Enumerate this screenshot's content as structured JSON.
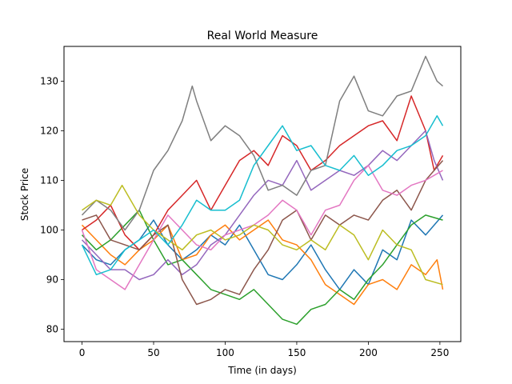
{
  "chart_data": {
    "type": "line",
    "title": "Real World Measure",
    "xlabel": "Time (in days)",
    "ylabel": "Stock Price",
    "xlim": [
      -12.6,
      264.6
    ],
    "ylim": [
      77.5,
      137
    ],
    "xticks": [
      0,
      50,
      100,
      150,
      200,
      250
    ],
    "yticks": [
      80,
      90,
      100,
      110,
      120,
      130
    ],
    "grid": false,
    "legend": "none",
    "series": [
      {
        "color": "#1f77b4",
        "points": [
          [
            0,
            97
          ],
          [
            10,
            94
          ],
          [
            20,
            93
          ],
          [
            30,
            96
          ],
          [
            40,
            98
          ],
          [
            50,
            102
          ],
          [
            60,
            97
          ],
          [
            70,
            94
          ],
          [
            80,
            96
          ],
          [
            90,
            99
          ],
          [
            100,
            97
          ],
          [
            110,
            101
          ],
          [
            120,
            96
          ],
          [
            130,
            91
          ],
          [
            140,
            90
          ],
          [
            150,
            93
          ],
          [
            160,
            97
          ],
          [
            170,
            92
          ],
          [
            180,
            88
          ],
          [
            190,
            92
          ],
          [
            200,
            89
          ],
          [
            210,
            96
          ],
          [
            220,
            94
          ],
          [
            230,
            102
          ],
          [
            240,
            99
          ],
          [
            252,
            103
          ]
        ]
      },
      {
        "color": "#ff7f0e",
        "points": [
          [
            0,
            101
          ],
          [
            10,
            98
          ],
          [
            20,
            95
          ],
          [
            30,
            93
          ],
          [
            40,
            96
          ],
          [
            50,
            98
          ],
          [
            60,
            101
          ],
          [
            70,
            94
          ],
          [
            80,
            95
          ],
          [
            90,
            99
          ],
          [
            100,
            101
          ],
          [
            110,
            98
          ],
          [
            120,
            100
          ],
          [
            130,
            102
          ],
          [
            140,
            98
          ],
          [
            150,
            97
          ],
          [
            160,
            94
          ],
          [
            170,
            89
          ],
          [
            180,
            87
          ],
          [
            190,
            85
          ],
          [
            200,
            89
          ],
          [
            210,
            90
          ],
          [
            220,
            88
          ],
          [
            230,
            93
          ],
          [
            240,
            91
          ],
          [
            248,
            94
          ],
          [
            252,
            88
          ]
        ]
      },
      {
        "color": "#2ca02c",
        "points": [
          [
            0,
            99
          ],
          [
            10,
            96
          ],
          [
            20,
            98
          ],
          [
            30,
            101
          ],
          [
            40,
            104
          ],
          [
            50,
            98
          ],
          [
            60,
            93
          ],
          [
            70,
            94
          ],
          [
            80,
            91
          ],
          [
            90,
            88
          ],
          [
            100,
            87
          ],
          [
            110,
            86
          ],
          [
            120,
            88
          ],
          [
            130,
            85
          ],
          [
            140,
            82
          ],
          [
            150,
            81
          ],
          [
            160,
            84
          ],
          [
            170,
            85
          ],
          [
            180,
            88
          ],
          [
            190,
            86
          ],
          [
            200,
            90
          ],
          [
            210,
            93
          ],
          [
            220,
            97
          ],
          [
            230,
            101
          ],
          [
            240,
            103
          ],
          [
            252,
            102
          ]
        ]
      },
      {
        "color": "#d62728",
        "points": [
          [
            0,
            100
          ],
          [
            10,
            102
          ],
          [
            20,
            105
          ],
          [
            30,
            99
          ],
          [
            40,
            96
          ],
          [
            50,
            99
          ],
          [
            60,
            104
          ],
          [
            70,
            107
          ],
          [
            80,
            110
          ],
          [
            90,
            104
          ],
          [
            100,
            109
          ],
          [
            110,
            114
          ],
          [
            120,
            116
          ],
          [
            130,
            113
          ],
          [
            140,
            119
          ],
          [
            150,
            117
          ],
          [
            160,
            112
          ],
          [
            170,
            114
          ],
          [
            180,
            117
          ],
          [
            190,
            119
          ],
          [
            200,
            121
          ],
          [
            210,
            122
          ],
          [
            220,
            118
          ],
          [
            230,
            127
          ],
          [
            240,
            120
          ],
          [
            246,
            112
          ],
          [
            252,
            115
          ]
        ]
      },
      {
        "color": "#9467bd",
        "points": [
          [
            0,
            98
          ],
          [
            10,
            95
          ],
          [
            20,
            92
          ],
          [
            30,
            92
          ],
          [
            40,
            90
          ],
          [
            50,
            91
          ],
          [
            60,
            94
          ],
          [
            70,
            91
          ],
          [
            80,
            93
          ],
          [
            90,
            97
          ],
          [
            100,
            99
          ],
          [
            110,
            103
          ],
          [
            120,
            107
          ],
          [
            130,
            110
          ],
          [
            140,
            109
          ],
          [
            150,
            114
          ],
          [
            160,
            108
          ],
          [
            170,
            110
          ],
          [
            180,
            112
          ],
          [
            190,
            111
          ],
          [
            200,
            113
          ],
          [
            210,
            116
          ],
          [
            220,
            114
          ],
          [
            230,
            117
          ],
          [
            240,
            120
          ],
          [
            246,
            114
          ],
          [
            252,
            110
          ]
        ]
      },
      {
        "color": "#8c564b",
        "points": [
          [
            0,
            102
          ],
          [
            10,
            103
          ],
          [
            20,
            98
          ],
          [
            30,
            97
          ],
          [
            40,
            96
          ],
          [
            50,
            99
          ],
          [
            60,
            101
          ],
          [
            70,
            90
          ],
          [
            80,
            85
          ],
          [
            90,
            86
          ],
          [
            100,
            88
          ],
          [
            110,
            87
          ],
          [
            120,
            92
          ],
          [
            130,
            96
          ],
          [
            140,
            102
          ],
          [
            150,
            104
          ],
          [
            160,
            98
          ],
          [
            170,
            103
          ],
          [
            180,
            101
          ],
          [
            190,
            103
          ],
          [
            200,
            102
          ],
          [
            210,
            106
          ],
          [
            220,
            108
          ],
          [
            230,
            104
          ],
          [
            240,
            110
          ],
          [
            246,
            112
          ],
          [
            252,
            114
          ]
        ]
      },
      {
        "color": "#e377c2",
        "points": [
          [
            0,
            100
          ],
          [
            10,
            92
          ],
          [
            20,
            90
          ],
          [
            30,
            88
          ],
          [
            40,
            93
          ],
          [
            50,
            98
          ],
          [
            60,
            103
          ],
          [
            70,
            100
          ],
          [
            80,
            97
          ],
          [
            90,
            96
          ],
          [
            100,
            99
          ],
          [
            110,
            100
          ],
          [
            120,
            101
          ],
          [
            130,
            103
          ],
          [
            140,
            106
          ],
          [
            150,
            104
          ],
          [
            160,
            99
          ],
          [
            170,
            104
          ],
          [
            180,
            105
          ],
          [
            190,
            110
          ],
          [
            200,
            113
          ],
          [
            210,
            108
          ],
          [
            220,
            107
          ],
          [
            230,
            109
          ],
          [
            240,
            110
          ],
          [
            246,
            111
          ],
          [
            252,
            112
          ]
        ]
      },
      {
        "color": "#7f7f7f",
        "points": [
          [
            0,
            103
          ],
          [
            10,
            106
          ],
          [
            20,
            104
          ],
          [
            30,
            100
          ],
          [
            40,
            104
          ],
          [
            50,
            112
          ],
          [
            60,
            116
          ],
          [
            70,
            122
          ],
          [
            77,
            129
          ],
          [
            80,
            126
          ],
          [
            90,
            118
          ],
          [
            100,
            121
          ],
          [
            110,
            119
          ],
          [
            120,
            115
          ],
          [
            130,
            108
          ],
          [
            140,
            109
          ],
          [
            150,
            107
          ],
          [
            160,
            112
          ],
          [
            170,
            113
          ],
          [
            180,
            126
          ],
          [
            190,
            131
          ],
          [
            200,
            124
          ],
          [
            210,
            123
          ],
          [
            220,
            127
          ],
          [
            230,
            128
          ],
          [
            240,
            135
          ],
          [
            248,
            130
          ],
          [
            252,
            129
          ]
        ]
      },
      {
        "color": "#bcbd22",
        "points": [
          [
            0,
            104
          ],
          [
            10,
            106
          ],
          [
            20,
            105
          ],
          [
            28,
            109
          ],
          [
            40,
            103
          ],
          [
            50,
            100
          ],
          [
            60,
            98
          ],
          [
            70,
            96
          ],
          [
            80,
            99
          ],
          [
            90,
            100
          ],
          [
            100,
            98
          ],
          [
            110,
            99
          ],
          [
            120,
            101
          ],
          [
            130,
            100
          ],
          [
            140,
            97
          ],
          [
            150,
            96
          ],
          [
            160,
            98
          ],
          [
            170,
            96
          ],
          [
            180,
            101
          ],
          [
            190,
            99
          ],
          [
            200,
            94
          ],
          [
            210,
            100
          ],
          [
            220,
            97
          ],
          [
            230,
            96
          ],
          [
            240,
            90
          ],
          [
            252,
            89
          ]
        ]
      },
      {
        "color": "#17becf",
        "points": [
          [
            0,
            97
          ],
          [
            10,
            91
          ],
          [
            20,
            92
          ],
          [
            30,
            96
          ],
          [
            40,
            98
          ],
          [
            50,
            100
          ],
          [
            60,
            97
          ],
          [
            70,
            101
          ],
          [
            80,
            106
          ],
          [
            90,
            104
          ],
          [
            100,
            104
          ],
          [
            110,
            106
          ],
          [
            120,
            113
          ],
          [
            130,
            117
          ],
          [
            140,
            121
          ],
          [
            150,
            116
          ],
          [
            160,
            117
          ],
          [
            170,
            113
          ],
          [
            180,
            112
          ],
          [
            190,
            115
          ],
          [
            200,
            111
          ],
          [
            210,
            113
          ],
          [
            220,
            116
          ],
          [
            230,
            117
          ],
          [
            240,
            119
          ],
          [
            248,
            123
          ],
          [
            252,
            121
          ]
        ]
      }
    ]
  }
}
